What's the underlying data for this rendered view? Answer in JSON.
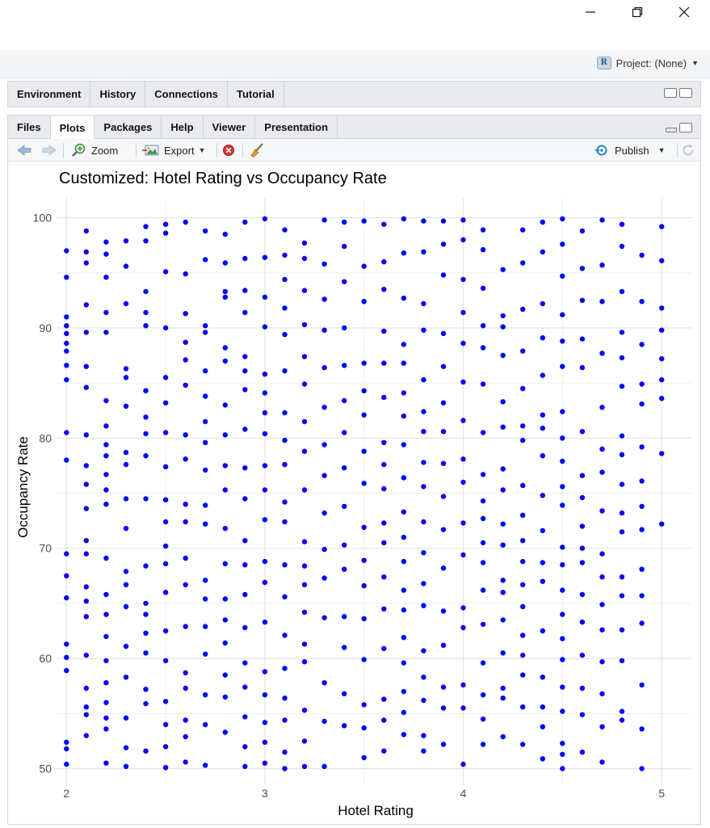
{
  "window": {
    "minimize_icon": "minimize-icon",
    "restore_icon": "restore-icon",
    "close_icon": "close-icon"
  },
  "project": {
    "label": "Project: (None)"
  },
  "top_pane": {
    "tabs": [
      {
        "label": "Environment"
      },
      {
        "label": "History"
      },
      {
        "label": "Connections"
      },
      {
        "label": "Tutorial"
      }
    ]
  },
  "bottom_pane": {
    "tabs": [
      {
        "label": "Files"
      },
      {
        "label": "Plots",
        "active": true
      },
      {
        "label": "Packages"
      },
      {
        "label": "Help"
      },
      {
        "label": "Viewer"
      },
      {
        "label": "Presentation"
      }
    ],
    "toolbar": {
      "zoom_label": "Zoom",
      "export_label": "Export",
      "publish_label": "Publish"
    }
  },
  "chart_data": {
    "type": "scatter",
    "title": "Customized: Hotel Rating vs Occupancy Rate",
    "xlabel": "Hotel Rating",
    "ylabel": "Occupancy Rate",
    "xlim": [
      1.95,
      5.15
    ],
    "ylim": [
      48.5,
      101.8
    ],
    "xticks": [
      2,
      3,
      4,
      5
    ],
    "yticks": [
      50,
      60,
      70,
      80,
      90,
      100
    ],
    "point_color": "#0000ff",
    "grid": true,
    "ratings": [
      2.0,
      2.1,
      2.2,
      2.3,
      2.4,
      2.5,
      2.6,
      2.7,
      2.8,
      2.9,
      3.0,
      3.1,
      3.2,
      3.3,
      3.4,
      3.5,
      3.6,
      3.7,
      3.8,
      3.9,
      4.0,
      4.1,
      4.2,
      4.3,
      4.4,
      4.5,
      4.6,
      4.7,
      4.8,
      4.9,
      5.0
    ],
    "occupancy_by_rating": [
      [
        50.4,
        51.8,
        52.4,
        58.9,
        60.1,
        61.3,
        65.5,
        67.5,
        69.5,
        78.0,
        80.5,
        85.3,
        86.6,
        87.9,
        88.6,
        89.5,
        90.2,
        91.0,
        94.6,
        97.0
      ],
      [
        53.0,
        54.9,
        55.6,
        57.3,
        60.3,
        63.8,
        65.2,
        66.5,
        69.5,
        70.7,
        73.6,
        75.8,
        77.5,
        80.3,
        84.6,
        86.5,
        89.6,
        92.1,
        95.9,
        96.9,
        98.8
      ],
      [
        50.5,
        53.6,
        54.6,
        56.0,
        57.8,
        59.8,
        62.0,
        64.0,
        65.8,
        69.1,
        74.0,
        75.3,
        76.7,
        78.4,
        79.4,
        81.1,
        83.4,
        89.6,
        91.4,
        94.6,
        96.7,
        97.8
      ],
      [
        50.2,
        51.9,
        54.6,
        58.3,
        61.1,
        64.7,
        66.7,
        67.9,
        71.8,
        74.5,
        77.6,
        78.7,
        82.9,
        85.5,
        86.3,
        92.2,
        95.6,
        97.9
      ],
      [
        51.6,
        55.9,
        57.2,
        60.5,
        62.3,
        64.0,
        65.0,
        68.4,
        74.5,
        78.4,
        80.4,
        81.9,
        84.3,
        90.2,
        91.4,
        93.3,
        97.9,
        99.2
      ],
      [
        50.1,
        52.0,
        54.0,
        56.1,
        59.8,
        62.5,
        66.0,
        68.6,
        70.2,
        72.4,
        74.4,
        77.4,
        80.5,
        83.2,
        85.5,
        90.0,
        95.1,
        98.6,
        99.4
      ],
      [
        50.6,
        52.9,
        54.4,
        57.3,
        58.7,
        62.9,
        66.7,
        69.1,
        72.4,
        74.0,
        78.1,
        80.3,
        84.8,
        87.1,
        88.7,
        91.3,
        94.9,
        99.6
      ],
      [
        50.3,
        54.0,
        56.7,
        60.4,
        62.9,
        65.4,
        67.1,
        72.2,
        73.9,
        77.1,
        79.6,
        81.5,
        83.8,
        86.1,
        89.6,
        90.2,
        96.2,
        98.8
      ],
      [
        53.3,
        56.5,
        58.5,
        61.4,
        63.5,
        65.4,
        68.6,
        71.8,
        75.3,
        77.5,
        80.3,
        83.0,
        87.0,
        88.2,
        92.8,
        93.3,
        95.9,
        98.5
      ],
      [
        50.2,
        52.0,
        54.7,
        57.4,
        59.6,
        62.8,
        65.8,
        68.5,
        70.7,
        74.5,
        77.3,
        80.8,
        84.4,
        86.1,
        87.4,
        91.4,
        93.4,
        96.3,
        99.6
      ],
      [
        50.5,
        52.4,
        54.2,
        56.7,
        58.8,
        63.3,
        66.9,
        68.8,
        72.6,
        75.3,
        77.5,
        80.4,
        82.3,
        84.1,
        85.8,
        90.1,
        92.8,
        96.4,
        99.9
      ],
      [
        50.0,
        51.5,
        54.4,
        56.4,
        59.1,
        62.1,
        65.6,
        68.5,
        72.4,
        74.2,
        77.6,
        79.8,
        82.3,
        86.1,
        89.4,
        91.8,
        94.4,
        96.6,
        98.9
      ],
      [
        50.2,
        52.5,
        55.3,
        59.7,
        61.3,
        64.2,
        66.7,
        68.4,
        70.6,
        75.3,
        78.8,
        81.5,
        84.9,
        87.4,
        90.3,
        93.4,
        96.3,
        97.7
      ],
      [
        50.2,
        54.3,
        57.8,
        63.7,
        67.3,
        69.9,
        73.2,
        76.6,
        79.4,
        82.8,
        86.4,
        89.8,
        92.6,
        95.8,
        99.8
      ],
      [
        53.9,
        56.8,
        61.0,
        63.8,
        68.1,
        70.3,
        73.8,
        77.3,
        80.5,
        83.4,
        86.6,
        90.0,
        94.2,
        97.4,
        99.6
      ],
      [
        51.0,
        53.7,
        55.8,
        59.9,
        63.6,
        66.6,
        68.9,
        71.9,
        75.9,
        78.8,
        82.1,
        84.3,
        86.8,
        92.4,
        95.6,
        99.7
      ],
      [
        51.6,
        54.4,
        56.3,
        60.9,
        64.5,
        67.4,
        70.5,
        72.3,
        75.4,
        77.6,
        79.6,
        83.7,
        86.8,
        89.7,
        93.5,
        96.0,
        99.4
      ],
      [
        53.1,
        55.1,
        57.0,
        59.6,
        61.9,
        64.4,
        66.2,
        68.8,
        71.0,
        73.3,
        76.4,
        79.4,
        82.0,
        84.1,
        86.8,
        88.5,
        92.7,
        96.8,
        99.9
      ],
      [
        51.6,
        53.0,
        56.2,
        58.3,
        60.7,
        64.8,
        66.8,
        69.6,
        72.4,
        75.6,
        77.8,
        80.6,
        82.4,
        85.3,
        89.8,
        92.2,
        96.9,
        99.7
      ],
      [
        52.2,
        55.5,
        57.4,
        61.2,
        64.3,
        68.2,
        71.7,
        74.7,
        77.7,
        80.6,
        83.2,
        86.5,
        89.5,
        94.8,
        97.6,
        99.7
      ],
      [
        50.4,
        55.5,
        57.6,
        62.8,
        64.6,
        69.4,
        72.3,
        76.0,
        78.1,
        81.6,
        85.1,
        88.6,
        91.4,
        94.4,
        98.0,
        99.8
      ],
      [
        52.2,
        54.5,
        56.7,
        59.6,
        63.1,
        66.2,
        68.7,
        70.5,
        72.7,
        74.3,
        76.7,
        80.5,
        84.9,
        88.2,
        90.2,
        93.6,
        97.1,
        98.9
      ],
      [
        52.9,
        56.4,
        57.3,
        60.5,
        63.5,
        66.0,
        67.1,
        70.3,
        72.2,
        75.3,
        77.2,
        81.0,
        83.3,
        87.5,
        90.1,
        91.1,
        95.3
      ],
      [
        52.2,
        55.6,
        58.5,
        60.3,
        62.1,
        64.7,
        66.7,
        68.8,
        70.7,
        73.0,
        75.7,
        79.8,
        81.1,
        84.5,
        87.9,
        91.7,
        95.9,
        98.9
      ],
      [
        50.9,
        53.8,
        55.6,
        58.3,
        62.5,
        67.0,
        68.7,
        71.6,
        74.8,
        78.4,
        80.9,
        82.1,
        85.7,
        89.1,
        92.2,
        96.9,
        99.6
      ],
      [
        50.0,
        51.3,
        52.3,
        55.2,
        57.4,
        59.9,
        61.8,
        64.0,
        66.2,
        68.5,
        70.1,
        73.9,
        75.6,
        77.9,
        80.0,
        82.4,
        86.5,
        88.8,
        91.2,
        94.7,
        97.6,
        99.9
      ],
      [
        51.5,
        54.9,
        57.3,
        60.3,
        63.3,
        65.8,
        68.7,
        70.0,
        72.0,
        74.6,
        76.6,
        80.6,
        86.4,
        89.0,
        92.5,
        95.4,
        98.8
      ],
      [
        50.6,
        53.8,
        56.8,
        59.7,
        62.6,
        64.9,
        67.4,
        69.5,
        73.4,
        76.9,
        79.0,
        82.8,
        87.7,
        92.4,
        95.7,
        99.8
      ],
      [
        54.4,
        55.2,
        59.8,
        62.6,
        65.7,
        67.4,
        71.5,
        73.2,
        75.8,
        78.5,
        80.2,
        84.7,
        87.3,
        89.6,
        93.3,
        97.4,
        99.4
      ],
      [
        50.0,
        53.6,
        57.6,
        63.2,
        65.7,
        68.1,
        71.7,
        73.8,
        76.1,
        79.2,
        83.1,
        84.9,
        88.5,
        92.4,
        96.6
      ],
      [
        72.2,
        78.6,
        83.6,
        85.3,
        87.2,
        89.8,
        91.8,
        96.1,
        99.2
      ]
    ]
  }
}
